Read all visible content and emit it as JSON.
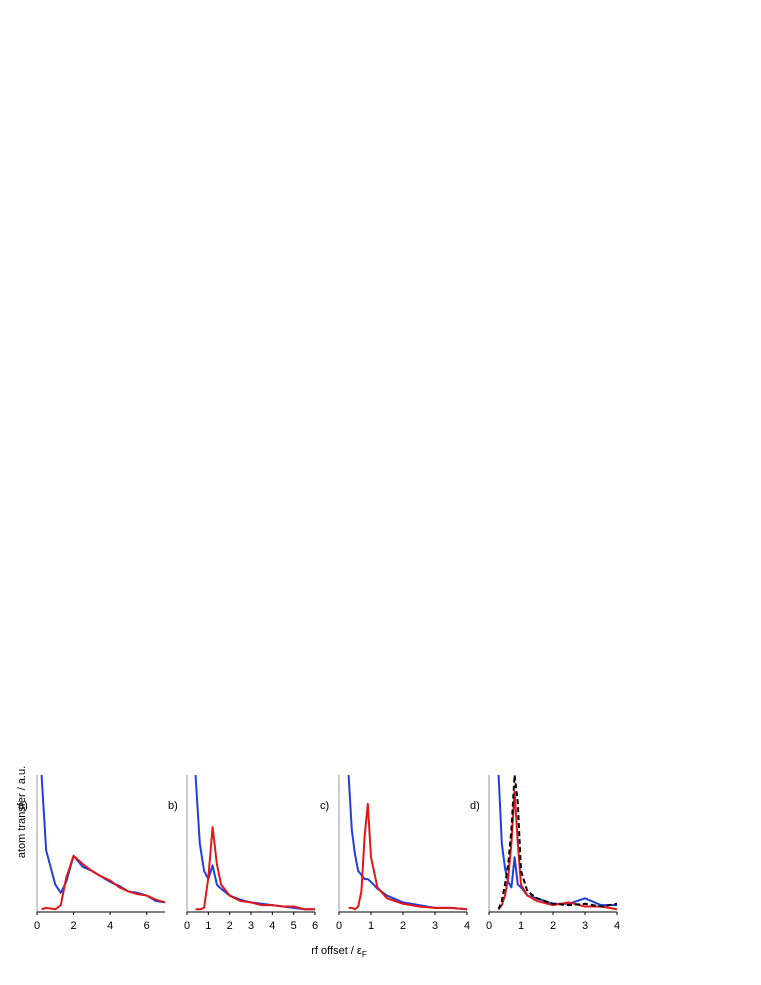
{
  "xlabel": "rf offset / ε",
  "xlabel_sub": "F",
  "chart_data": [
    {
      "type": "line",
      "label": "a)",
      "ylabel": "atom transfer / a.u.",
      "x": [
        0.25,
        0.5,
        1,
        1.3,
        1.6,
        2,
        2.5,
        3,
        3.5,
        4,
        4.5,
        5,
        5.5,
        6,
        6.5,
        7
      ],
      "series": [
        {
          "color": "#1f3fe0",
          "values": [
            1.0,
            0.45,
            0.2,
            0.14,
            0.22,
            0.41,
            0.33,
            0.3,
            0.26,
            0.22,
            0.19,
            0.15,
            0.14,
            0.12,
            0.08,
            0.07
          ]
        },
        {
          "color": "#e01818",
          "values": [
            0.02,
            0.03,
            0.02,
            0.05,
            0.25,
            0.41,
            0.35,
            0.3,
            0.26,
            0.23,
            0.18,
            0.15,
            0.13,
            0.12,
            0.09,
            0.07
          ]
        }
      ],
      "xlim": [
        0,
        7
      ],
      "xticks": [
        0,
        2,
        4,
        6
      ],
      "ylim": [
        0,
        1
      ]
    },
    {
      "type": "line",
      "label": "b)",
      "x": [
        0.4,
        0.6,
        0.8,
        1.0,
        1.2,
        1.4,
        1.6,
        2,
        2.5,
        3,
        3.5,
        4,
        4.5,
        5,
        5.5,
        6
      ],
      "series": [
        {
          "color": "#1f3fe0",
          "values": [
            1.0,
            0.5,
            0.3,
            0.24,
            0.34,
            0.2,
            0.17,
            0.12,
            0.09,
            0.07,
            0.06,
            0.05,
            0.04,
            0.03,
            0.02,
            0.02
          ]
        },
        {
          "color": "#e01818",
          "values": [
            0.02,
            0.02,
            0.03,
            0.25,
            0.62,
            0.35,
            0.2,
            0.12,
            0.08,
            0.07,
            0.05,
            0.05,
            0.04,
            0.04,
            0.02,
            0.02
          ]
        }
      ],
      "xlim": [
        0,
        6
      ],
      "xticks": [
        0,
        1,
        2,
        3,
        4,
        5,
        6
      ],
      "ylim": [
        0,
        1
      ]
    },
    {
      "type": "line",
      "label": "c)",
      "x": [
        0.3,
        0.4,
        0.5,
        0.6,
        0.7,
        0.8,
        0.9,
        1.0,
        1.2,
        1.5,
        2,
        2.5,
        3,
        3.5,
        4
      ],
      "series": [
        {
          "color": "#1f3fe0",
          "values": [
            1.0,
            0.6,
            0.42,
            0.3,
            0.27,
            0.24,
            0.24,
            0.22,
            0.17,
            0.12,
            0.07,
            0.05,
            0.03,
            0.03,
            0.02
          ]
        },
        {
          "color": "#e01818",
          "values": [
            0.03,
            0.03,
            0.02,
            0.04,
            0.15,
            0.55,
            0.79,
            0.4,
            0.18,
            0.1,
            0.06,
            0.04,
            0.03,
            0.03,
            0.02
          ]
        }
      ],
      "xlim": [
        0,
        4
      ],
      "xticks": [
        0,
        1,
        2,
        3,
        4
      ],
      "ylim": [
        0,
        1
      ]
    },
    {
      "type": "line",
      "label": "d)",
      "x": [
        0.3,
        0.4,
        0.5,
        0.6,
        0.7,
        0.8,
        0.9,
        1.0,
        1.2,
        1.5,
        2,
        2.5,
        3,
        3.5,
        4
      ],
      "series": [
        {
          "color": "#1f3fe0",
          "values": [
            1.0,
            0.5,
            0.32,
            0.22,
            0.18,
            0.4,
            0.2,
            0.18,
            0.12,
            0.1,
            0.06,
            0.06,
            0.1,
            0.05,
            0.05
          ]
        },
        {
          "color": "#e01818",
          "values": [
            0.02,
            0.05,
            0.12,
            0.25,
            0.5,
            0.88,
            0.5,
            0.2,
            0.12,
            0.08,
            0.05,
            0.07,
            0.04,
            0.04,
            0.02
          ]
        },
        {
          "color": "#000000",
          "dashed": true,
          "values": [
            0.02,
            0.08,
            0.2,
            0.35,
            0.6,
            1.0,
            0.8,
            0.3,
            0.15,
            0.1,
            0.06,
            0.05,
            0.06,
            0.04,
            0.06
          ]
        }
      ],
      "xlim": [
        0,
        4
      ],
      "xticks": [
        0,
        1,
        2,
        3,
        4
      ],
      "ylim": [
        0,
        1
      ]
    }
  ]
}
